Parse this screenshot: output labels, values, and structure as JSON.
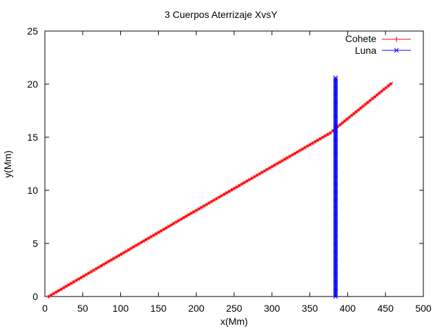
{
  "chart_data": {
    "type": "scatter",
    "title": "3 Cuerpos Aterrizaje XvsY",
    "xlabel": "x(Mm)",
    "ylabel": "y(Mm)",
    "xlim": [
      0,
      500
    ],
    "ylim": [
      0,
      25
    ],
    "xticks": [
      "0",
      "50",
      "100",
      "150",
      "200",
      "250",
      "300",
      "350",
      "400",
      "450",
      "500"
    ],
    "yticks": [
      "0",
      "5",
      "10",
      "15",
      "20",
      "25"
    ],
    "legend_position": "top-right",
    "series": [
      {
        "name": "Cohete",
        "color": "#ff0000",
        "marker": "plus",
        "line_segments": [
          {
            "x": [
              5,
              190,
              377,
              387,
              460
            ],
            "y": [
              0,
              7.7,
              15.4,
              16.0,
              20.2
            ]
          }
        ]
      },
      {
        "name": "Luna",
        "color": "#0000ff",
        "marker": "cross",
        "x_constant": 384,
        "y_range": [
          0,
          20.6
        ]
      }
    ]
  }
}
